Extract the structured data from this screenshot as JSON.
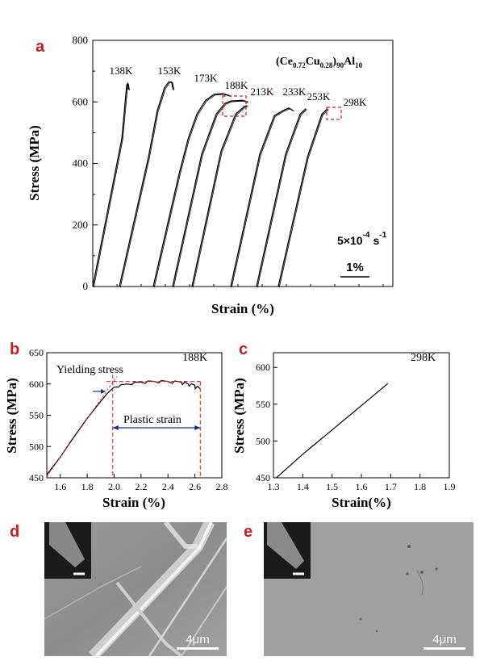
{
  "panels": {
    "a": {
      "letter": "a",
      "formula": {
        "base1": "(Ce",
        "sub1": "0.72",
        "mid": "Cu",
        "sub2": "0.28",
        "close": ")",
        "sub3": "90",
        "end": "Al",
        "sub4": "10"
      },
      "rate": {
        "base": "5×10",
        "exp1": "-4",
        "unit": "s",
        "exp2": "-1"
      },
      "scale_label": "1%"
    },
    "b": {
      "letter": "b",
      "temp": "188K",
      "yield_label": "Yielding stress",
      "plastic_label": "Plastic strain"
    },
    "c": {
      "letter": "c",
      "temp": "298K"
    },
    "d": {
      "letter": "d",
      "scale": "4μm"
    },
    "e": {
      "letter": "e",
      "scale": "4μm"
    }
  },
  "chart_data": [
    {
      "type": "line",
      "panel": "a",
      "xlabel": "Strain (%)",
      "ylabel": "Stress (MPa)",
      "ylim": [
        0,
        800
      ],
      "yticks": [
        "0",
        "200",
        "400",
        "600",
        "800"
      ],
      "series": [
        {
          "name": "138K",
          "curve": [
            [
              0,
              0
            ],
            [
              1.0,
              480
            ],
            [
              1.17,
              655
            ],
            [
              1.2,
              660
            ],
            [
              1.23,
              640
            ]
          ]
        },
        {
          "name": "153K",
          "curve": [
            [
              0,
              0
            ],
            [
              1.0,
              420
            ],
            [
              1.3,
              570
            ],
            [
              1.55,
              645
            ],
            [
              1.7,
              665
            ],
            [
              1.8,
              665
            ],
            [
              1.85,
              640
            ]
          ]
        },
        {
          "name": "173K",
          "curve": [
            [
              0,
              0
            ],
            [
              0.9,
              370
            ],
            [
              1.2,
              480
            ],
            [
              1.5,
              560
            ],
            [
              1.8,
              605
            ],
            [
              2.1,
              625
            ],
            [
              2.4,
              627
            ],
            [
              2.65,
              620
            ]
          ]
        },
        {
          "name": "188K",
          "curve": [
            [
              0,
              0
            ],
            [
              1.0,
              430
            ],
            [
              1.5,
              560
            ],
            [
              1.8,
              595
            ],
            [
              2.0,
              603
            ],
            [
              2.4,
              605
            ],
            [
              2.58,
              600
            ]
          ]
        },
        {
          "name": "213K",
          "curve": [
            [
              0,
              0
            ],
            [
              1.0,
              440
            ],
            [
              1.5,
              560
            ],
            [
              1.8,
              585
            ],
            [
              1.9,
              588
            ]
          ]
        },
        {
          "name": "233K",
          "curve": [
            [
              0,
              0
            ],
            [
              1.0,
              430
            ],
            [
              1.5,
              555
            ],
            [
              1.8,
              572
            ],
            [
              2.0,
              580
            ],
            [
              2.15,
              572
            ]
          ]
        },
        {
          "name": "253K",
          "curve": [
            [
              0,
              0
            ],
            [
              1.0,
              430
            ],
            [
              1.5,
              560
            ],
            [
              1.7,
              578
            ]
          ]
        },
        {
          "name": "298K",
          "curve": [
            [
              0,
              0
            ],
            [
              1.0,
              420
            ],
            [
              1.5,
              560
            ],
            [
              1.7,
              578
            ]
          ]
        }
      ]
    },
    {
      "type": "line",
      "panel": "b",
      "xlabel": "Strain (%)",
      "ylabel": "Stress (MPa)",
      "xlim": [
        1.5,
        2.8
      ],
      "ylim": [
        450,
        650
      ],
      "xticks": [
        "1.6",
        "1.8",
        "2.0",
        "2.2",
        "2.4",
        "2.6",
        "2.8"
      ],
      "yticks": [
        "450",
        "500",
        "550",
        "600",
        "650"
      ],
      "series": [
        {
          "name": "188K",
          "x": [
            1.5,
            1.6,
            1.7,
            1.8,
            1.9,
            1.95,
            2.0,
            2.1,
            2.2,
            2.3,
            2.4,
            2.5,
            2.55,
            2.6,
            2.64
          ],
          "y": [
            455,
            483,
            515,
            545,
            572,
            585,
            595,
            600,
            603,
            604,
            604,
            603,
            600,
            598,
            592
          ]
        }
      ],
      "yielding_point": {
        "x": 1.99,
        "y": 592
      },
      "plastic_strain": [
        1.99,
        2.64
      ]
    },
    {
      "type": "line",
      "panel": "c",
      "xlabel": "Strain(%)",
      "ylabel": "Stress (MPa)",
      "xlim": [
        1.3,
        1.9
      ],
      "ylim": [
        450,
        620
      ],
      "xticks": [
        "1.3",
        "1.4",
        "1.5",
        "1.6",
        "1.7",
        "1.8",
        "1.9"
      ],
      "yticks": [
        "450",
        "500",
        "550",
        "600"
      ],
      "series": [
        {
          "name": "298K",
          "x": [
            1.31,
            1.4,
            1.5,
            1.6,
            1.69
          ],
          "y": [
            450,
            482,
            515,
            548,
            578
          ]
        }
      ]
    }
  ],
  "colors": {
    "accent_red": "#d11a1a",
    "guide_blue": "#1a2a8c",
    "curve": "#000000"
  }
}
